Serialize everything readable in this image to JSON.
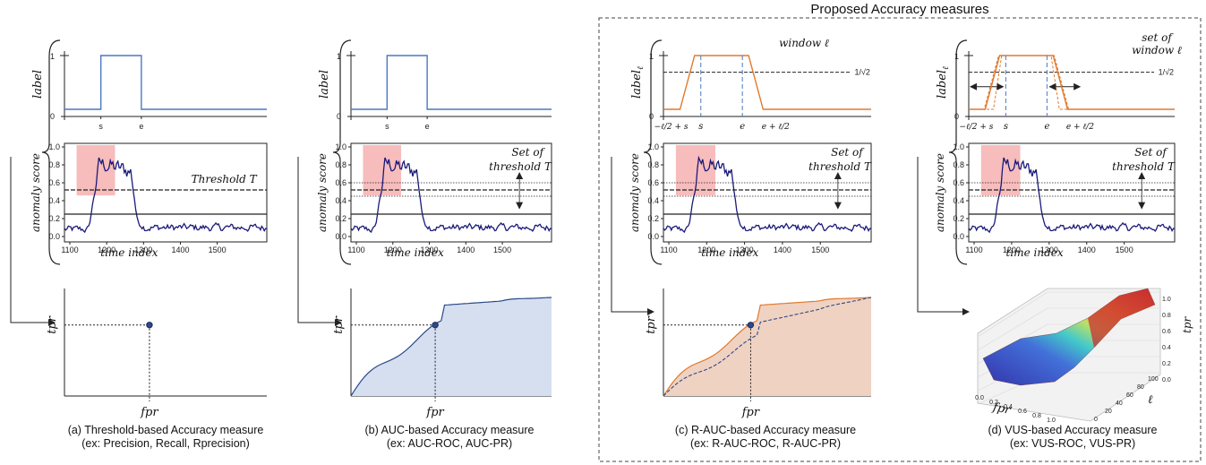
{
  "header": {
    "proposed_title": "Proposed Accuracy measures"
  },
  "labels": {
    "label": "label",
    "label_l": "label",
    "label_sub": "ℓ",
    "anomaly_score": "anomaly score",
    "time_index": "time index",
    "tpr": "tpr",
    "fpr": "fpr",
    "ell": "ℓ",
    "threshold": "Threshold T",
    "set_of": "Set of",
    "threshold_t": "threshold T",
    "window": "window ℓ",
    "set_of_window_1": "set of",
    "set_of_window_2": "window ℓ",
    "inv_sqrt2": "1/√2",
    "s": "s",
    "e": "e",
    "minus_half_s": "−ℓ/2 + s",
    "e_plus_half": "e + ℓ/2",
    "one": "1",
    "zero": "0"
  },
  "captions": {
    "a_title": "(a) Threshold-based Accuracy measure",
    "a_sub": "(ex: Precision, Recall, Rprecision)",
    "b_title": "(b) AUC-based Accuracy measure",
    "b_sub": "(ex: AUC-ROC, AUC-PR)",
    "c_title": "(c) R-AUC-based Accuracy measure",
    "c_sub": "(ex: R-AUC-ROC, R-AUC-PR)",
    "d_title": "(d) VUS-based Accuracy measure",
    "d_sub": "(ex: VUS-ROC, VUS-PR)"
  },
  "ticks": {
    "score_y": [
      "0.0",
      "0.2",
      "0.4",
      "0.6",
      "0.8",
      "1.0"
    ],
    "time_x": [
      "1100",
      "1200",
      "1300",
      "1400",
      "1500"
    ],
    "vus_fpr": [
      "0.0",
      "0.2",
      "0.4",
      "0.6",
      "0.8",
      "1.0"
    ],
    "vus_l": [
      "0",
      "20",
      "40",
      "60",
      "80",
      "100"
    ],
    "vus_tpr": [
      "0.0",
      "0.2",
      "0.4",
      "0.6",
      "0.8",
      "1.0"
    ]
  },
  "colors": {
    "label_blue": "#4a78c2",
    "label_orange": "#e07a2e",
    "score_navy": "#1a1a7a",
    "anomaly_pink": "#f4a0a0",
    "roc_fill_blue": "#d5dff0",
    "roc_fill_orange": "#f0d2c2",
    "point": "#2c4a8a"
  }
}
